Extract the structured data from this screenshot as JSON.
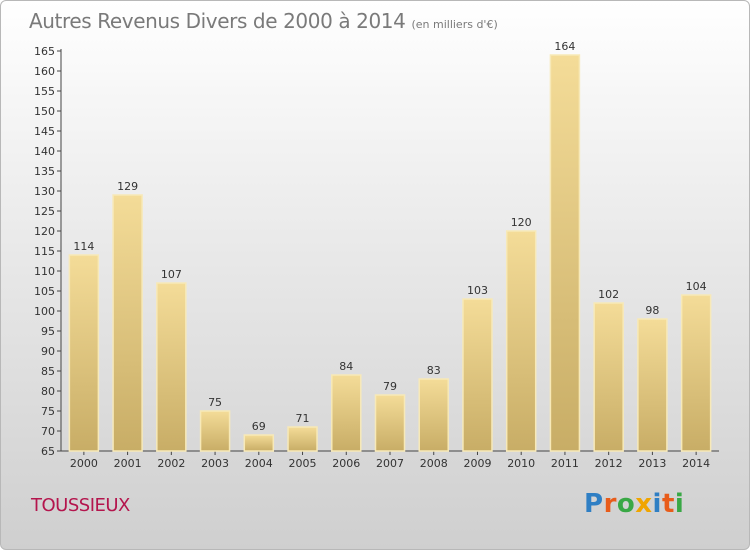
{
  "title": "Autres Revenus Divers de 2000 à 2014",
  "subtitle": "(en milliers d'€)",
  "commune": "TOUSSIEUX",
  "logo": {
    "letters": [
      "P",
      "r",
      "o",
      "x",
      "i",
      "t",
      "i"
    ],
    "colors": [
      "#2f7fc4",
      "#e85c1a",
      "#39a845",
      "#f0a500",
      "#2f7fc4",
      "#e85c1a",
      "#39a845"
    ]
  },
  "colors": {
    "bar_light": "#f4dc98",
    "bar_dark": "#c8ad66",
    "bar_edge": "#f7e9b8",
    "title": "#7a7a7a",
    "commune": "#b4154d"
  },
  "chart_data": {
    "type": "bar",
    "categories": [
      "2000",
      "2001",
      "2002",
      "2003",
      "2004",
      "2005",
      "2006",
      "2007",
      "2008",
      "2009",
      "2010",
      "2011",
      "2012",
      "2013",
      "2014"
    ],
    "values": [
      114,
      129,
      107,
      75,
      69,
      71,
      84,
      79,
      83,
      103,
      120,
      164,
      102,
      98,
      104
    ],
    "ylim": [
      65,
      165
    ],
    "ytick_step": 5,
    "xlabel": "",
    "ylabel": "",
    "grid": false,
    "legend": "none"
  }
}
